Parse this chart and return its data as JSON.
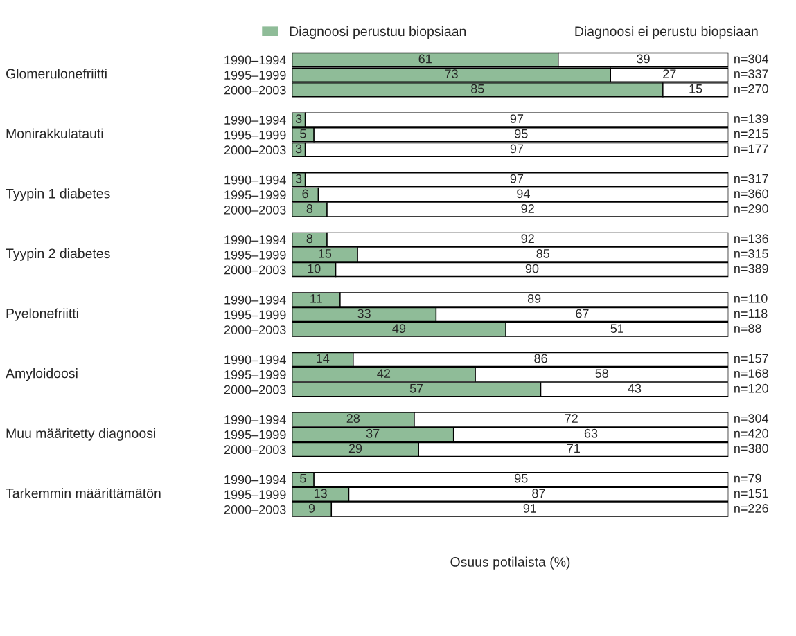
{
  "chart_data": {
    "type": "bar",
    "orientation": "horizontal",
    "stacked": true,
    "data_labels": true,
    "legend": "top",
    "xlabel": "Osuus potilaista (%)",
    "categories": [
      "1990–1994",
      "1995–1999",
      "2000–2003",
      "1990–1994",
      "1995–1999",
      "2000–2003",
      "1990–1994",
      "1995–1999",
      "2000–2003",
      "1990–1994",
      "1995–1999",
      "2000–2003",
      "1990–1994",
      "1995–1999",
      "2000–2003",
      "1990–1994",
      "1995–1999",
      "2000–2003",
      "1990–1994",
      "1995–1999",
      "2000–2003",
      "1990–1994",
      "1995–1999",
      "2000–2003"
    ],
    "series": [
      {
        "name": "Diagnoosi perustuu biopsiaan",
        "color": "#8fbc98",
        "values": [
          61,
          73,
          85,
          3,
          5,
          3,
          3,
          6,
          8,
          8,
          15,
          10,
          11,
          33,
          49,
          14,
          42,
          57,
          28,
          37,
          29,
          5,
          13,
          9
        ]
      },
      {
        "name": "Diagnoosi ei perustu biopsiaan",
        "color": "#ffffff",
        "values": [
          39,
          27,
          15,
          97,
          95,
          97,
          97,
          94,
          92,
          92,
          85,
          90,
          89,
          67,
          51,
          86,
          58,
          43,
          72,
          63,
          71,
          95,
          87,
          91
        ]
      }
    ],
    "annotations": [
      "Glomerulonefriitti",
      "Monirakkulatauti",
      "Tyypin 1 diabetes",
      "Tyypin 2 diabetes",
      "Pyelonefriitti",
      "Amyloidoosi",
      "Muu määritetty diagnoosi",
      "Tarkemmin määrittämätön",
      "n=304",
      "n=337",
      "n=270",
      "n=139",
      "n=215",
      "n=177",
      "n=317",
      "n=360",
      "n=290",
      "n=136",
      "n=315",
      "n=389",
      "n=110",
      "n=118",
      "n=88",
      "n=157",
      "n=168",
      "n=120",
      "n=304",
      "n=420",
      "n=380",
      "n=79",
      "n=151",
      "n=226"
    ]
  }
}
